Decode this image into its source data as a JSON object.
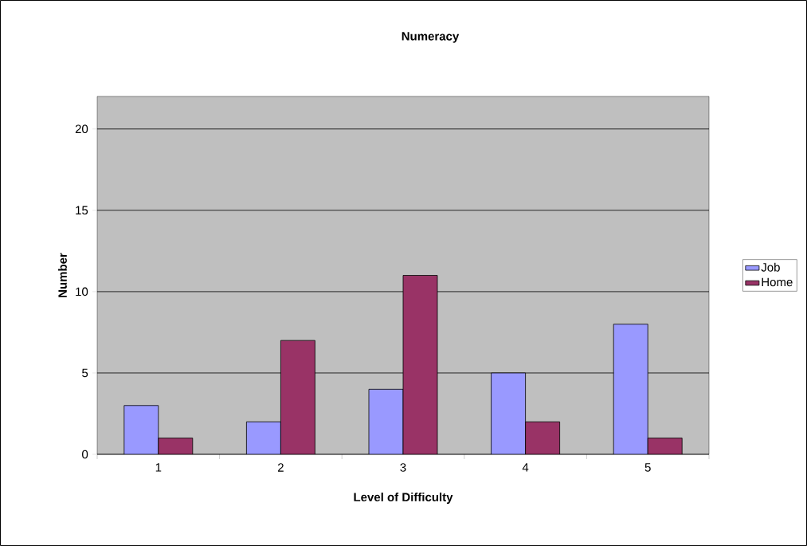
{
  "chart_data": {
    "type": "bar",
    "title": "Numeracy",
    "xlabel": "Level of Difficulty",
    "ylabel": "Number",
    "categories": [
      "1",
      "2",
      "3",
      "4",
      "5"
    ],
    "series": [
      {
        "name": "Job",
        "color": "#9999ff",
        "values": [
          3,
          2,
          4,
          5,
          8
        ]
      },
      {
        "name": "Home",
        "color": "#993366",
        "values": [
          1,
          7,
          11,
          2,
          1
        ]
      }
    ],
    "ylim": [
      0,
      22
    ],
    "yticks": [
      0,
      5,
      10,
      15,
      20
    ],
    "grid": "y",
    "legend": "right"
  }
}
